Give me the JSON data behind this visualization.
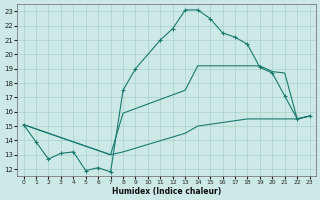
{
  "xlabel": "Humidex (Indice chaleur)",
  "bg_color": "#cce9e5",
  "grid_color": "#aad3ce",
  "line_color": "#1a7a6e",
  "xlim": [
    -0.5,
    23.5
  ],
  "ylim": [
    11.5,
    23.5
  ],
  "xticks": [
    0,
    1,
    2,
    3,
    4,
    5,
    6,
    7,
    8,
    9,
    10,
    11,
    12,
    13,
    14,
    15,
    16,
    17,
    18,
    19,
    20,
    21,
    22,
    23
  ],
  "yticks": [
    12,
    13,
    14,
    15,
    16,
    17,
    18,
    19,
    20,
    21,
    22,
    23
  ],
  "line_main_x": [
    0,
    1,
    2,
    3,
    4,
    5,
    6,
    7,
    8,
    9,
    11,
    12,
    13,
    14,
    15,
    16,
    17,
    18,
    19,
    20,
    21,
    22,
    23
  ],
  "line_main_y": [
    15.1,
    13.9,
    12.7,
    13.1,
    13.2,
    11.9,
    12.1,
    11.8,
    17.5,
    19.0,
    21.0,
    21.8,
    23.1,
    23.1,
    22.5,
    21.5,
    21.2,
    20.7,
    19.1,
    18.7,
    17.1,
    15.5,
    15.7
  ],
  "line_mid_x": [
    0,
    7,
    8,
    13,
    14,
    18,
    19,
    20,
    21,
    22,
    23
  ],
  "line_mid_y": [
    15.1,
    13.0,
    15.9,
    17.5,
    19.2,
    19.2,
    19.2,
    18.8,
    18.7,
    15.5,
    15.7
  ],
  "line_bot_x": [
    0,
    7,
    8,
    13,
    14,
    18,
    20,
    22,
    23
  ],
  "line_bot_y": [
    15.1,
    13.0,
    13.2,
    14.5,
    15.0,
    15.5,
    15.5,
    15.5,
    15.7
  ]
}
